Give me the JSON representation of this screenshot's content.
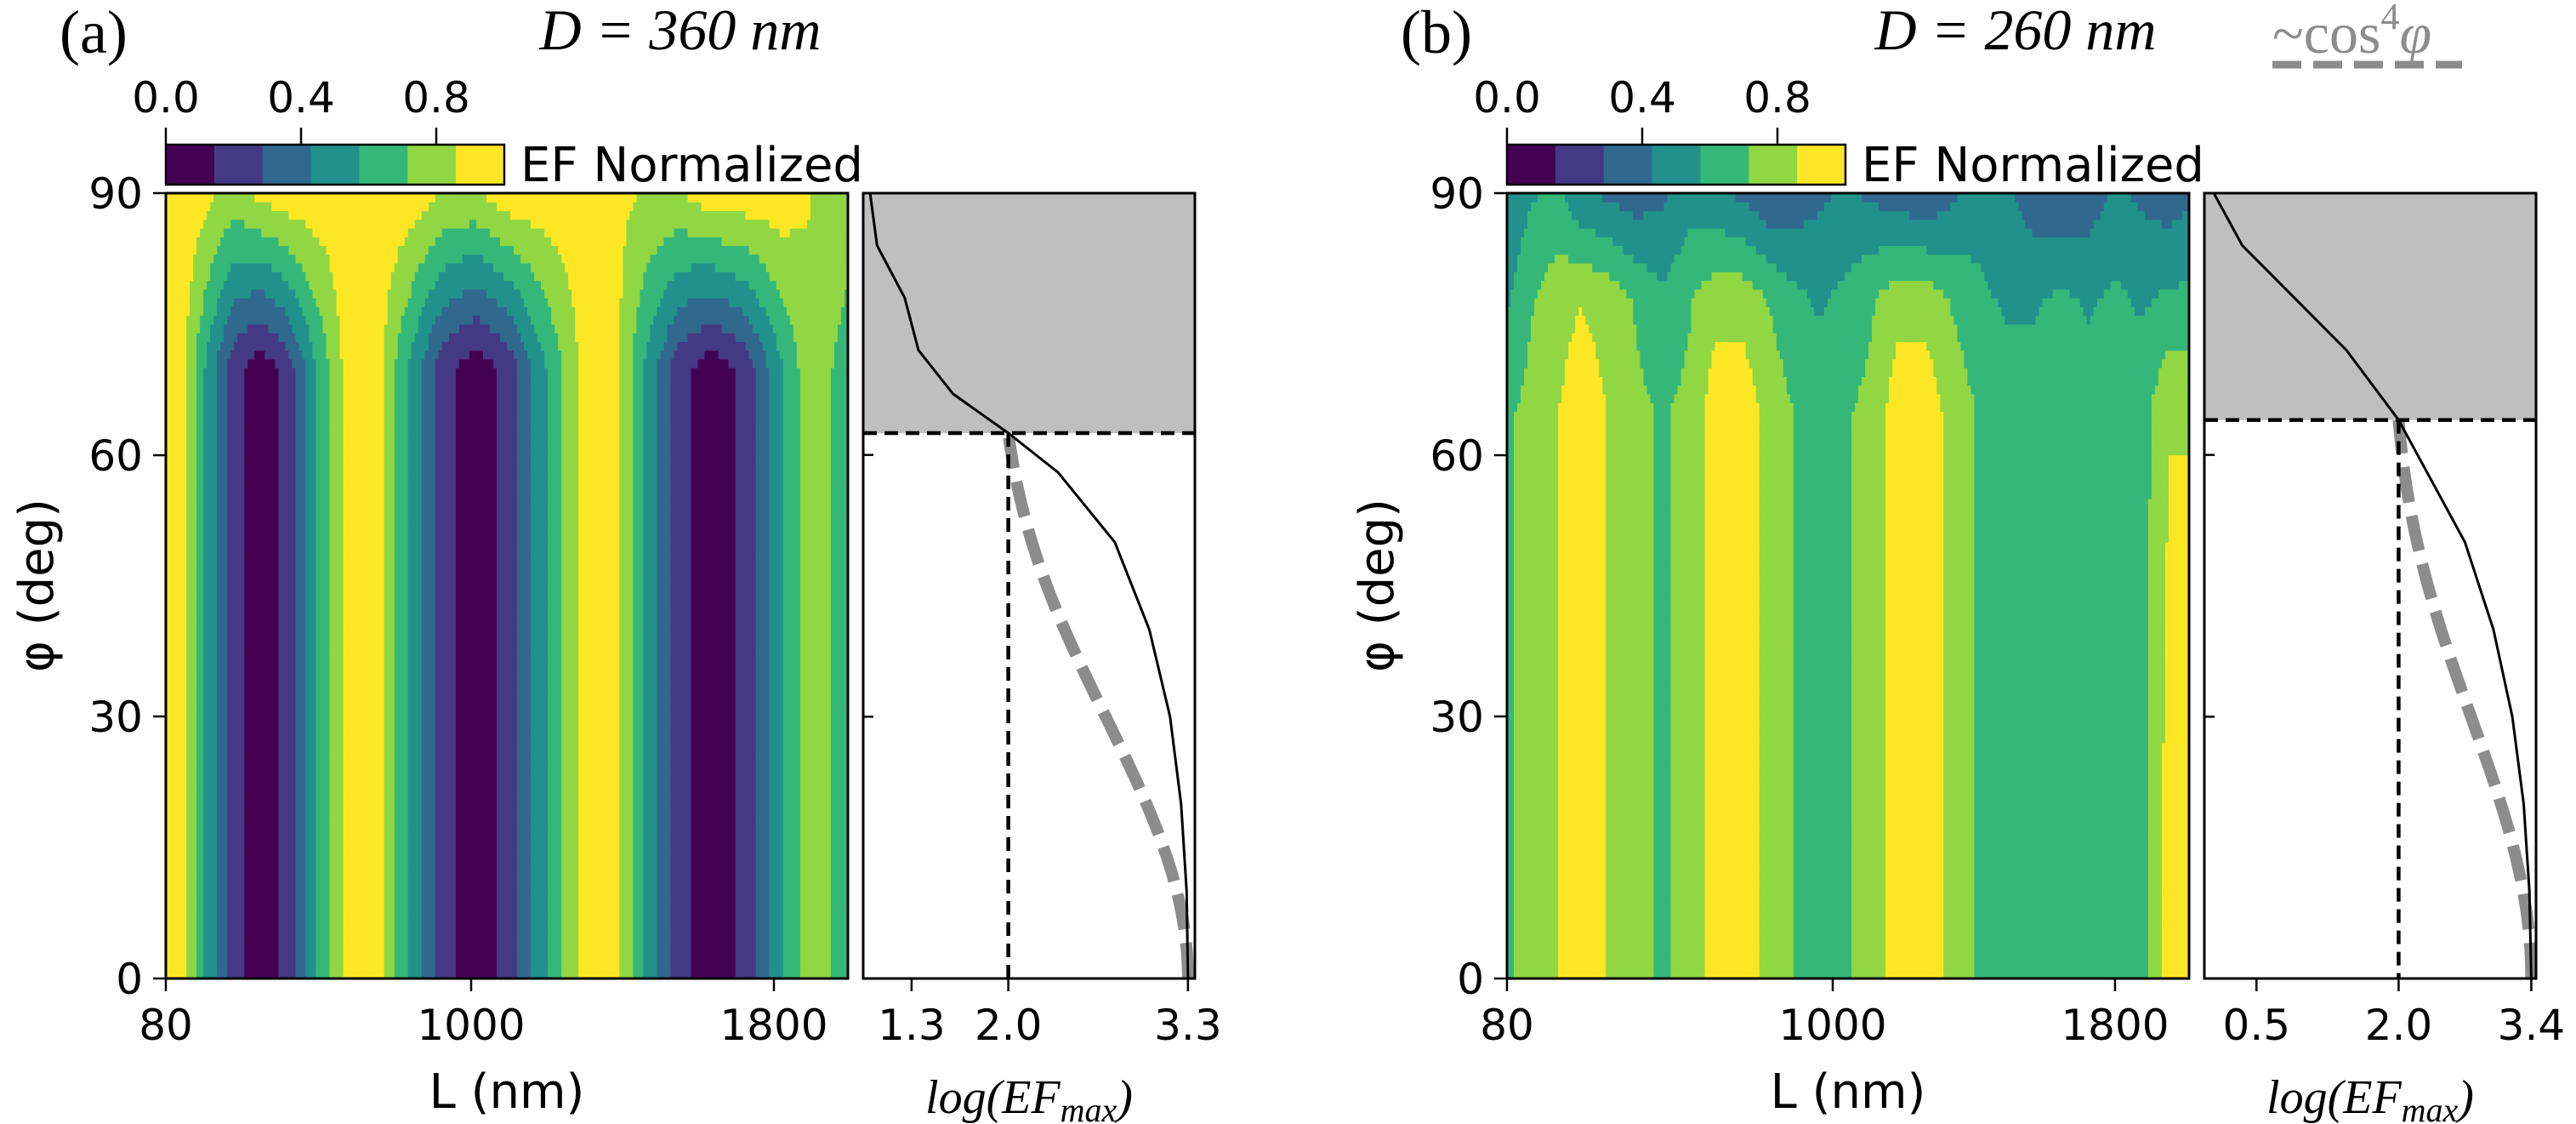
{
  "colors": {
    "levels": [
      "#440154",
      "#443983",
      "#31688e",
      "#21918c",
      "#35b779",
      "#90d743",
      "#fde725"
    ],
    "shade": "#bfbfbf",
    "fit": "#8c8c8c"
  },
  "chart_data": [
    {
      "type": "heatmap",
      "panel_label": "(a)",
      "title": "D = 360 nm",
      "xlabel": "L (nm)",
      "ylabel": "φ (deg)",
      "xticks": [
        "80",
        "1000",
        "1800"
      ],
      "yticks": [
        "0",
        "30",
        "60",
        "90"
      ],
      "ylim": [
        0,
        90
      ],
      "colorbar": {
        "label": "EF Normalized",
        "ticks": [
          "0.0",
          "0.4",
          "0.8"
        ],
        "range": [
          0,
          1
        ],
        "levels": 7
      },
      "x_columns": [
        80,
        140,
        200,
        280,
        360,
        440,
        520,
        600,
        700,
        800,
        900,
        1000,
        1100,
        1200,
        1300,
        1400,
        1500,
        1600,
        1700,
        1800,
        1900,
        2000,
        2100
      ],
      "rows": [
        {
          "phi": 0,
          "values": [
            0.95,
            0.85,
            0.55,
            0.2,
            0.05,
            0.2,
            0.55,
            0.85,
            0.95,
            0.55,
            0.2,
            0.05,
            0.2,
            0.55,
            0.85,
            0.95,
            0.55,
            0.2,
            0.05,
            0.2,
            0.55,
            0.85,
            0.6
          ]
        },
        {
          "phi": 70,
          "values": [
            0.95,
            0.85,
            0.55,
            0.2,
            0.05,
            0.2,
            0.55,
            0.85,
            0.95,
            0.55,
            0.2,
            0.05,
            0.2,
            0.55,
            0.85,
            0.95,
            0.55,
            0.2,
            0.05,
            0.2,
            0.55,
            0.85,
            0.6
          ]
        },
        {
          "phi": 90,
          "values": [
            0.95,
            0.95,
            0.9,
            0.8,
            0.9,
            0.95,
            0.95,
            0.95,
            0.95,
            0.95,
            0.85,
            0.85,
            0.95,
            0.95,
            0.95,
            0.9,
            0.85,
            0.85,
            0.95,
            0.95,
            0.95,
            0.85,
            0.85
          ]
        }
      ],
      "side_curve": {
        "xlabel": "log(EFmax)",
        "xticks": [
          "1.3",
          "2.0",
          "3.3"
        ],
        "xlim": [
          0.95,
          3.35
        ],
        "fit_label": "~cos⁴φ",
        "threshold": {
          "log_ef": 2.0,
          "phi": 62.5
        },
        "points": [
          [
            3.3,
            0
          ],
          [
            3.29,
            10
          ],
          [
            3.25,
            20
          ],
          [
            3.17,
            30
          ],
          [
            3.02,
            40
          ],
          [
            2.77,
            50
          ],
          [
            2.36,
            58
          ],
          [
            2.0,
            62.5
          ],
          [
            1.6,
            67
          ],
          [
            1.35,
            72
          ],
          [
            1.25,
            78
          ],
          [
            1.05,
            84
          ],
          [
            1.0,
            90
          ]
        ]
      }
    },
    {
      "type": "heatmap",
      "panel_label": "(b)",
      "title": "D = 260 nm",
      "xlabel": "L (nm)",
      "ylabel": "φ (deg)",
      "xticks": [
        "80",
        "1000",
        "1800"
      ],
      "yticks": [
        "0",
        "30",
        "60",
        "90"
      ],
      "ylim": [
        0,
        90
      ],
      "colorbar": {
        "label": "EF Normalized",
        "ticks": [
          "0.0",
          "0.4",
          "0.8"
        ],
        "range": [
          0,
          1
        ],
        "levels": 7
      },
      "x_columns": [
        80,
        150,
        230,
        300,
        380,
        460,
        540,
        620,
        700,
        780,
        860,
        940,
        1000,
        1080,
        1160,
        1240,
        1320,
        1400,
        1480,
        1560,
        1640,
        1720,
        1800,
        1880,
        1960,
        2040,
        2100
      ],
      "rows": [
        {
          "phi": 0,
          "values": [
            0.7,
            0.75,
            0.85,
            0.95,
            0.85,
            0.75,
            0.7,
            0.75,
            0.95,
            0.95,
            0.8,
            0.7,
            0.65,
            0.7,
            0.75,
            0.95,
            0.95,
            0.8,
            0.7,
            0.65,
            0.65,
            0.7,
            0.65,
            0.65,
            0.65,
            0.95,
            0.95
          ]
        },
        {
          "phi": 65,
          "values": [
            0.7,
            0.75,
            0.85,
            0.95,
            0.85,
            0.75,
            0.7,
            0.75,
            0.95,
            0.95,
            0.8,
            0.7,
            0.65,
            0.7,
            0.75,
            0.95,
            0.95,
            0.8,
            0.7,
            0.65,
            0.65,
            0.7,
            0.65,
            0.65,
            0.65,
            0.85,
            0.85
          ]
        },
        {
          "phi": 78,
          "values": [
            0.55,
            0.7,
            0.8,
            0.85,
            0.8,
            0.7,
            0.6,
            0.7,
            0.8,
            0.8,
            0.7,
            0.6,
            0.55,
            0.6,
            0.7,
            0.8,
            0.8,
            0.7,
            0.6,
            0.55,
            0.55,
            0.6,
            0.55,
            0.6,
            0.55,
            0.6,
            0.6
          ]
        },
        {
          "phi": 90,
          "values": [
            0.45,
            0.55,
            0.6,
            0.45,
            0.4,
            0.35,
            0.4,
            0.5,
            0.45,
            0.4,
            0.3,
            0.35,
            0.4,
            0.45,
            0.4,
            0.35,
            0.3,
            0.4,
            0.5,
            0.45,
            0.35,
            0.3,
            0.35,
            0.45,
            0.4,
            0.35,
            0.4
          ]
        }
      ],
      "side_curve": {
        "xlabel": "log(EFmax)",
        "xticks": [
          "0.5",
          "2.0",
          "3.4"
        ],
        "xlim": [
          -0.05,
          3.45
        ],
        "fit_label": "~cos⁴φ",
        "threshold": {
          "log_ef": 2.0,
          "phi": 64
        },
        "points": [
          [
            3.4,
            0
          ],
          [
            3.38,
            10
          ],
          [
            3.32,
            20
          ],
          [
            3.2,
            30
          ],
          [
            3.0,
            40
          ],
          [
            2.7,
            50
          ],
          [
            2.3,
            58
          ],
          [
            2.0,
            64
          ],
          [
            1.45,
            72
          ],
          [
            0.9,
            78
          ],
          [
            0.35,
            84
          ],
          [
            0.05,
            90
          ]
        ]
      }
    }
  ]
}
